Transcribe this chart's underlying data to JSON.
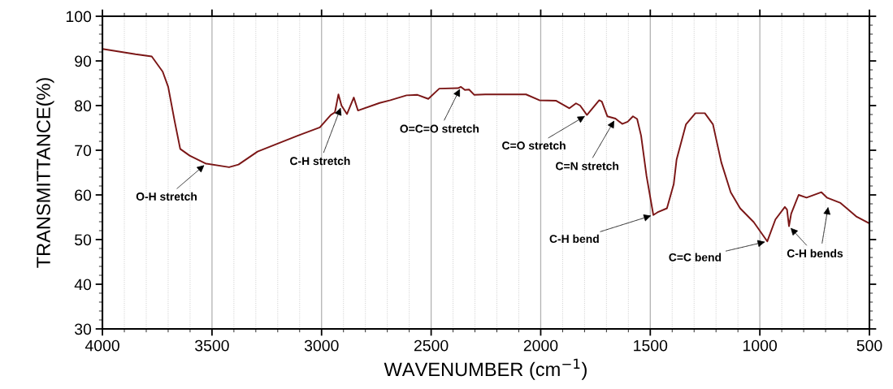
{
  "chart_data": {
    "type": "line",
    "xlabel": "WAVENUMBER (cm$^{−1}$)",
    "ylabel": "TRANSMITTANCE(%)",
    "xlim": [
      4000,
      500
    ],
    "xticks": [
      4000,
      3500,
      3000,
      2500,
      2000,
      1500,
      1000,
      500
    ],
    "ylim": [
      30,
      100
    ],
    "yticks": [
      30,
      40,
      50,
      60,
      70,
      80,
      90,
      100
    ],
    "grid": "x",
    "legend": false,
    "marker": "none",
    "line_style": "solid",
    "series": [
      {
        "color": "#7b1616",
        "x": [
          4000,
          3849,
          3775,
          3725,
          3700,
          3670,
          3645,
          3602,
          3527,
          3422,
          3379,
          3292,
          3107,
          3008,
          2958,
          2939,
          2923,
          2909,
          2884,
          2853,
          2834,
          2735,
          2686,
          2612,
          2562,
          2513,
          2463,
          2377,
          2364,
          2346,
          2327,
          2303,
          2253,
          2067,
          2006,
          1931,
          1869,
          1839,
          1820,
          1789,
          1733,
          1721,
          1696,
          1659,
          1628,
          1603,
          1579,
          1560,
          1542,
          1517,
          1486,
          1467,
          1424,
          1393,
          1380,
          1337,
          1294,
          1251,
          1214,
          1176,
          1133,
          1090,
          1028,
          966,
          929,
          886,
          876,
          867,
          857,
          823,
          787,
          719,
          694,
          632,
          558,
          500
        ],
        "values": [
          92.7,
          91.5,
          91.0,
          87.6,
          84.2,
          76.4,
          70.3,
          68.8,
          67.0,
          66.2,
          66.8,
          69.7,
          73.3,
          75.1,
          77.9,
          78.5,
          82.5,
          80.0,
          78.1,
          81.8,
          78.9,
          80.6,
          81.2,
          82.3,
          82.4,
          81.5,
          83.8,
          83.9,
          84.2,
          83.5,
          83.6,
          82.4,
          82.5,
          82.5,
          81.2,
          81.1,
          79.4,
          80.5,
          80.0,
          77.9,
          81.2,
          80.9,
          77.6,
          77.1,
          75.9,
          76.4,
          77.6,
          77.0,
          73.3,
          64.2,
          55.5,
          56.1,
          57.0,
          62.4,
          67.9,
          75.8,
          78.3,
          78.3,
          75.8,
          67.3,
          60.6,
          57.0,
          53.9,
          49.6,
          54.5,
          57.3,
          56.7,
          53.0,
          55.8,
          60.0,
          59.4,
          60.6,
          59.4,
          58.2,
          55.1,
          53.6
        ]
      }
    ],
    "annotations": [
      {
        "text": "O-H stretch",
        "x": 3527,
        "y": 67.0
      },
      {
        "text": "C-H stretch",
        "x": 2909,
        "y": 80.0
      },
      {
        "text": "O=C=O stretch",
        "x": 2364,
        "y": 84.2
      },
      {
        "text": "C=O stretch",
        "x": 1789,
        "y": 77.9
      },
      {
        "text": "C=N stretch",
        "x": 1659,
        "y": 77.1
      },
      {
        "text": "C-H bend",
        "x": 1486,
        "y": 55.5
      },
      {
        "text": "C=C bend",
        "x": 966,
        "y": 49.6
      },
      {
        "text": "C-H bends",
        "x": 867,
        "y": 53.0
      }
    ]
  }
}
